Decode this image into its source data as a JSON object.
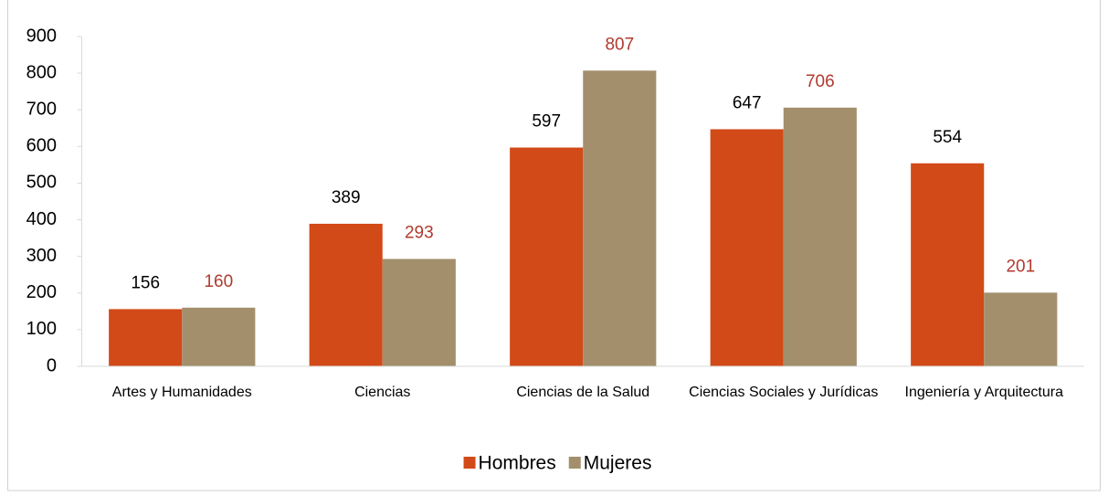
{
  "chart_data": {
    "type": "bar",
    "categories": [
      "Artes y Humanidades",
      "Ciencias",
      "Ciencias de la Salud",
      "Ciencias Sociales y Jurídicas",
      "Ingeniería y Arquitectura"
    ],
    "series": [
      {
        "name": "Hombres",
        "color": "#d24a18",
        "label_color": "#000000",
        "values": [
          156,
          389,
          597,
          647,
          554
        ]
      },
      {
        "name": "Mujeres",
        "color": "#a38f6c",
        "label_color": "#b03a2e",
        "values": [
          160,
          293,
          807,
          706,
          201
        ]
      }
    ],
    "ylim": [
      0,
      900
    ],
    "yticks": [
      0,
      100,
      200,
      300,
      400,
      500,
      600,
      700,
      800,
      900
    ],
    "grid": false,
    "legend": "bottom"
  }
}
